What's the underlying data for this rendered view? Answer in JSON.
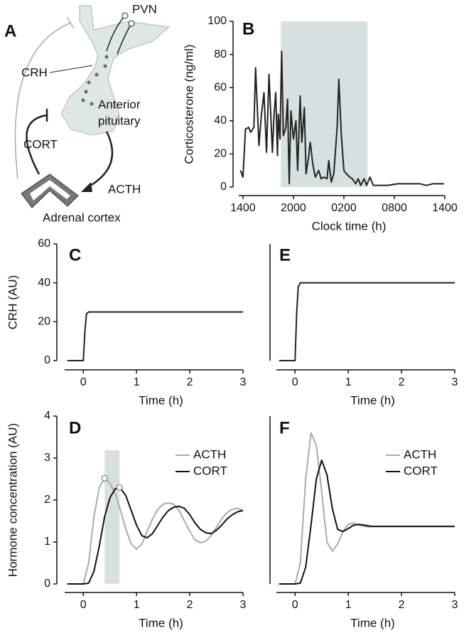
{
  "diagram": {
    "label": "A",
    "pvn": "PVN",
    "crh": "CRH",
    "pituitary": [
      "Anterior",
      "pituitary"
    ],
    "cort": "CORT",
    "acth": "ACTH",
    "adrenal": "Adrenal cortex"
  },
  "chart_data": [
    {
      "type": "line",
      "label": "B",
      "xlabel": "Clock time (h)",
      "ylabel": "Corticosterone (ng/ml)",
      "color": "#222222",
      "x": [
        -0.3,
        0,
        0.3,
        0.7,
        0.9,
        1.3,
        1.5,
        1.9,
        2.2,
        2.5,
        2.8,
        3.1,
        3.5,
        3.7,
        3.9,
        4.1,
        4.2,
        4.4,
        4.6,
        4.8,
        5.1,
        5.3,
        5.5,
        5.7,
        6.0,
        6.3,
        6.5,
        6.8,
        7.0,
        7.3,
        7.5,
        7.8,
        8.0,
        8.3,
        8.6,
        9.0,
        9.3,
        9.6,
        10.0,
        10.2,
        10.5,
        10.8,
        11.2,
        11.4,
        11.7,
        12.0,
        12.3,
        12.7,
        13.0,
        13.4,
        13.7,
        14.0,
        14.4,
        14.7,
        15.1,
        15.5,
        16.3,
        17.2,
        18.4,
        19.7,
        21.0,
        21.8,
        22.6,
        23.9
      ],
      "values": [
        10,
        6,
        35,
        36,
        33,
        36,
        72,
        25,
        44,
        57,
        21,
        68,
        21,
        44,
        57,
        19,
        44,
        29,
        82,
        31,
        36,
        53,
        2,
        46,
        29,
        40,
        10,
        55,
        27,
        48,
        8,
        18,
        27,
        14,
        6,
        10,
        5,
        6,
        5,
        16,
        3,
        8,
        36,
        65,
        31,
        10,
        8,
        6,
        5,
        2,
        5,
        1,
        5,
        1,
        6,
        1,
        1,
        1,
        2,
        2,
        2,
        1,
        2,
        2
      ],
      "xlim": [
        -0.5,
        24
      ],
      "xticks": [
        {
          "value": 0,
          "label": "1400"
        },
        {
          "value": 6,
          "label": "2000"
        },
        {
          "value": 12,
          "label": "0200"
        },
        {
          "value": 18,
          "label": "0800"
        },
        {
          "value": 24,
          "label": "1400"
        }
      ],
      "ylim": [
        0,
        100
      ],
      "yticks": [
        0,
        20,
        40,
        60,
        80,
        100
      ],
      "shade": [
        4.5,
        14.8
      ],
      "shade_color": "#d6e0e2"
    },
    {
      "type": "line",
      "label": "C",
      "xlabel": "Time (h)",
      "ylabel": "CRH (AU)",
      "color": "#222222",
      "x": [
        -0.3,
        0,
        0.03,
        0.06,
        0.1,
        3
      ],
      "values": [
        0,
        0,
        15,
        24,
        25,
        25
      ],
      "xlim": [
        -0.35,
        3
      ],
      "xticks": [
        0,
        1,
        2,
        3
      ],
      "ylim": [
        0,
        60
      ],
      "yticks": [
        0,
        20,
        40,
        60
      ]
    },
    {
      "type": "line",
      "label": "E",
      "xlabel": "Time (h)",
      "color": "#222222",
      "x": [
        -0.3,
        0,
        0.03,
        0.06,
        0.1,
        3
      ],
      "values": [
        0,
        0,
        24,
        38,
        40,
        40
      ],
      "xlim": [
        -0.35,
        3
      ],
      "xticks": [
        0,
        1,
        2,
        3
      ],
      "ylim": [
        0,
        60
      ]
    },
    {
      "type": "line",
      "label": "D",
      "xlabel": "Time (h)",
      "ylabel": "Hormone concentration (AU)",
      "x": [
        -0.3,
        0,
        0.1,
        0.2,
        0.3,
        0.4,
        0.5,
        0.6,
        0.7,
        0.8,
        0.9,
        1.0,
        1.1,
        1.2,
        1.3,
        1.4,
        1.5,
        1.6,
        1.7,
        1.8,
        1.9,
        2.0,
        2.1,
        2.2,
        2.3,
        2.4,
        2.5,
        2.6,
        2.7,
        2.8,
        2.9,
        3.0
      ],
      "series": [
        {
          "name": "ACTH",
          "color": "#aaaaaa",
          "values": [
            0,
            0,
            0.5,
            1.6,
            2.3,
            2.52,
            2.4,
            2.15,
            1.75,
            1.3,
            0.95,
            0.83,
            0.95,
            1.25,
            1.55,
            1.78,
            1.9,
            1.93,
            1.9,
            1.75,
            1.5,
            1.25,
            1.05,
            0.98,
            1.02,
            1.15,
            1.35,
            1.55,
            1.7,
            1.78,
            1.8,
            1.75
          ]
        },
        {
          "name": "CORT",
          "color": "#111111",
          "values": [
            0,
            0,
            0.02,
            0.3,
            0.9,
            1.6,
            2.05,
            2.27,
            2.28,
            2.1,
            1.75,
            1.4,
            1.15,
            1.1,
            1.2,
            1.4,
            1.6,
            1.75,
            1.83,
            1.85,
            1.8,
            1.65,
            1.45,
            1.3,
            1.22,
            1.2,
            1.28,
            1.4,
            1.55,
            1.65,
            1.72,
            1.75
          ]
        }
      ],
      "xlim": [
        -0.35,
        3
      ],
      "xticks": [
        0,
        1,
        2,
        3
      ],
      "ylim": [
        0,
        4
      ],
      "yticks": [
        0,
        1,
        2,
        3,
        4
      ],
      "shade": [
        0.4,
        0.68
      ],
      "shade_color": "#d6e0e2",
      "markers": [
        {
          "x": 0.4,
          "y": 2.52
        },
        {
          "x": 0.68,
          "y": 2.3
        }
      ]
    },
    {
      "type": "line",
      "label": "F",
      "xlabel": "Time (h)",
      "x": [
        -0.3,
        0,
        0.1,
        0.2,
        0.3,
        0.4,
        0.5,
        0.6,
        0.7,
        0.8,
        0.9,
        1.0,
        1.1,
        1.2,
        1.3,
        1.4,
        1.5,
        1.6,
        1.7,
        1.8,
        1.9,
        2.0,
        2.1,
        2.2,
        2.3,
        2.4,
        2.5,
        2.6,
        2.7,
        2.8,
        2.9,
        3.0
      ],
      "series": [
        {
          "name": "ACTH",
          "color": "#aaaaaa",
          "values": [
            0,
            0,
            0.5,
            2.5,
            3.6,
            3.3,
            2.2,
            1.0,
            0.78,
            0.95,
            1.25,
            1.42,
            1.45,
            1.4,
            1.37,
            1.36,
            1.37,
            1.37,
            1.37,
            1.37,
            1.37,
            1.37,
            1.37,
            1.37,
            1.37,
            1.37,
            1.37,
            1.37,
            1.37,
            1.37,
            1.37,
            1.37
          ]
        },
        {
          "name": "CORT",
          "color": "#111111",
          "values": [
            0,
            0,
            0.02,
            0.4,
            1.4,
            2.5,
            2.95,
            2.6,
            1.8,
            1.3,
            1.25,
            1.32,
            1.4,
            1.42,
            1.4,
            1.38,
            1.37,
            1.37,
            1.37,
            1.37,
            1.37,
            1.37,
            1.37,
            1.37,
            1.37,
            1.37,
            1.37,
            1.37,
            1.37,
            1.37,
            1.37,
            1.37
          ]
        }
      ],
      "xlim": [
        -0.35,
        3
      ],
      "xticks": [
        0,
        1,
        2,
        3
      ],
      "ylim": [
        0,
        4
      ]
    }
  ]
}
